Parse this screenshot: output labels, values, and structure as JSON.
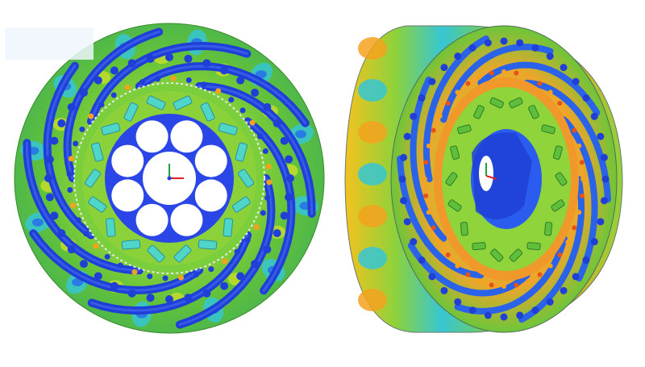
{
  "scene": {
    "description_free": true,
    "views": [
      {
        "id": "front-view",
        "kind": "cross-section"
      },
      {
        "id": "iso-view",
        "kind": "isometric"
      }
    ],
    "colors": {
      "background": "#ffffff",
      "stator_green": "#6cc63a",
      "stator_yellow": "#c9dd2c",
      "stator_cyan": "#36c6d4",
      "stator_blue": "#2a7be3",
      "coil_blue": "#1f3fd6",
      "rotor_blue": "#2b46e6",
      "magnet_cyan": "#4fd6c8",
      "hot_orange": "#f3a21f",
      "hot_red": "#e5521c",
      "axis_x": "#e02020",
      "axis_y": "#20a040",
      "axis_z": "#2040e0"
    },
    "counts": {
      "stator_slots": 40,
      "rotor_magnets": 18,
      "rotor_holes": 8
    }
  }
}
